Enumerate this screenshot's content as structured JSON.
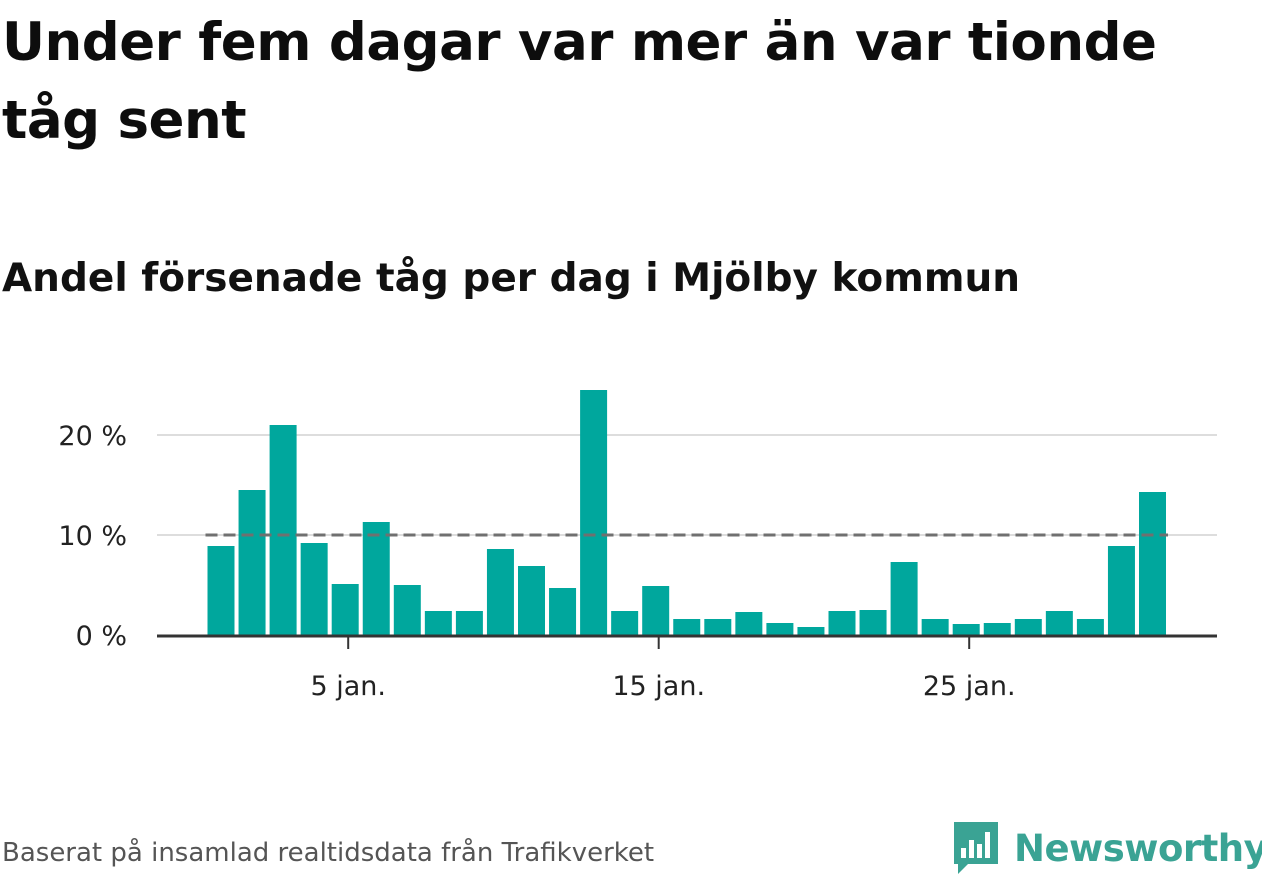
{
  "header": {
    "title": "Under fem dagar var mer än var tionde tåg sent",
    "subtitle": "Andel försenade tåg per dag i Mjölby kommun"
  },
  "footer": {
    "source": "Baserat på insamlad realtidsdata från Trafikverket",
    "brand": "Newsworthy"
  },
  "colors": {
    "bar": "#00a79d",
    "reference_line": "#707070",
    "grid": "#dddddd",
    "brand": "#3aa394"
  },
  "chart_data": {
    "type": "bar",
    "x": [
      1,
      2,
      3,
      4,
      5,
      6,
      7,
      8,
      9,
      10,
      11,
      12,
      13,
      14,
      15,
      16,
      17,
      18,
      19,
      20,
      21,
      22,
      23,
      24,
      25,
      26,
      27,
      28,
      29,
      30,
      31
    ],
    "values": [
      8.9,
      14.5,
      21.0,
      9.2,
      5.1,
      11.3,
      5.0,
      2.4,
      2.4,
      8.6,
      6.9,
      4.7,
      24.5,
      2.4,
      4.9,
      1.6,
      1.6,
      2.3,
      1.2,
      0.8,
      2.4,
      2.5,
      7.3,
      1.6,
      1.1,
      1.2,
      1.6,
      2.4,
      1.6,
      8.9,
      14.3
    ],
    "x_ticks": [
      {
        "value": 5,
        "label": "5 jan."
      },
      {
        "value": 15,
        "label": "15 jan."
      },
      {
        "value": 25,
        "label": "25 jan."
      }
    ],
    "y_ticks": [
      {
        "value": 0,
        "label": "0 %"
      },
      {
        "value": 10,
        "label": "10 %"
      },
      {
        "value": 20,
        "label": "20 %"
      }
    ],
    "ylim": [
      0,
      25
    ],
    "reference_line": 10,
    "grid": true,
    "xlabel": "",
    "ylabel": ""
  }
}
